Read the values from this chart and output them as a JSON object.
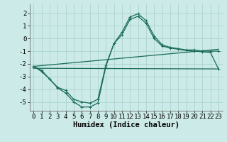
{
  "bg_color": "#cceae7",
  "grid_color": "#aad4d0",
  "line_color": "#1a6b5a",
  "xlabel": "Humidex (Indice chaleur)",
  "xlim": [
    -0.5,
    23.5
  ],
  "ylim": [
    -5.7,
    2.7
  ],
  "yticks": [
    -5,
    -4,
    -3,
    -2,
    -1,
    0,
    1,
    2
  ],
  "xticks": [
    0,
    1,
    2,
    3,
    4,
    5,
    6,
    7,
    8,
    9,
    10,
    11,
    12,
    13,
    14,
    15,
    16,
    17,
    18,
    19,
    20,
    21,
    22,
    23
  ],
  "line1_x": [
    0,
    1,
    2,
    3,
    4,
    5,
    6,
    7,
    8,
    9,
    10,
    11,
    12,
    13,
    14,
    15,
    16,
    17,
    18,
    19,
    20,
    21,
    22,
    23
  ],
  "line1_y": [
    -2.2,
    -2.6,
    -3.2,
    -3.9,
    -4.3,
    -5.0,
    -5.4,
    -5.4,
    -5.1,
    -2.2,
    -0.4,
    0.5,
    1.7,
    1.95,
    1.4,
    0.2,
    -0.5,
    -0.7,
    -0.8,
    -0.9,
    -0.9,
    -1.0,
    -1.0,
    -1.0
  ],
  "line2_x": [
    0,
    1,
    2,
    3,
    4,
    5,
    6,
    7,
    8,
    9,
    10,
    11,
    12,
    13,
    14,
    15,
    16,
    17,
    18,
    19,
    20,
    21,
    22,
    23
  ],
  "line2_y": [
    -2.2,
    -2.5,
    -3.2,
    -3.85,
    -4.1,
    -4.8,
    -5.0,
    -5.1,
    -4.8,
    -2.1,
    -0.4,
    0.3,
    1.5,
    1.75,
    1.2,
    0.0,
    -0.6,
    -0.75,
    -0.85,
    -0.95,
    -1.0,
    -1.05,
    -1.1,
    -2.4
  ],
  "line3_x": [
    0,
    23
  ],
  "line3_y": [
    -2.2,
    -0.85
  ],
  "line4_x": [
    0,
    23
  ],
  "line4_y": [
    -2.35,
    -2.4
  ],
  "lw": 0.9,
  "ms": 2.5,
  "tick_fontsize": 6.5,
  "label_fontsize": 7.5
}
